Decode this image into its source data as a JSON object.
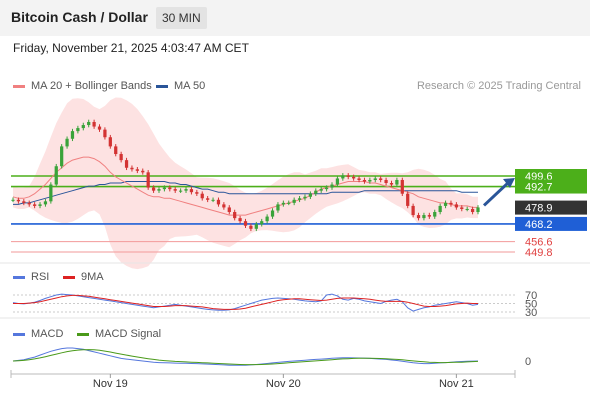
{
  "header": {
    "title": "Bitcoin Cash / Dollar",
    "timeframe": "30 MIN"
  },
  "datetime": "Friday, November 21, 2025 4:03:47 AM CET",
  "legend": {
    "ma20": {
      "label": "MA 20 + Bollinger Bands",
      "color": "#f08080"
    },
    "ma50": {
      "label": "MA 50",
      "color": "#2a5599"
    }
  },
  "credit": "Research © 2025 Trading Central",
  "rsi_legend": {
    "rsi": "RSI",
    "signal": "9MA"
  },
  "macd_legend": {
    "macd": "MACD",
    "signal": "MACD Signal"
  },
  "colors": {
    "up": "#3aa33a",
    "down": "#d33333",
    "resistance": "#4caf1a",
    "support": "#1f5fd6",
    "weak_support": "#e04040",
    "price": "#333333"
  },
  "chart_data": [
    {
      "type": "candlestick",
      "title": "Bitcoin Cash / Dollar",
      "x_ticks": [
        "Nov 19",
        "Nov 20",
        "Nov 21"
      ],
      "ylim": [
        445,
        520
      ],
      "price_labels": [
        {
          "value": 499.6,
          "label": "499.6",
          "kind": "resistance"
        },
        {
          "value": 492.7,
          "label": "492.7",
          "kind": "resistance"
        },
        {
          "value": 478.9,
          "label": "478.9",
          "kind": "last"
        },
        {
          "value": 468.2,
          "label": "468.2",
          "kind": "support"
        },
        {
          "value": 456.6,
          "label": "456.6",
          "kind": "weak_support"
        },
        {
          "value": 449.8,
          "label": "449.8",
          "kind": "weak_support"
        }
      ],
      "close": [
        484,
        483,
        482,
        481,
        480,
        481,
        483,
        494,
        506,
        519,
        524,
        529,
        531,
        533,
        535,
        532,
        530,
        525,
        519,
        514,
        510,
        505,
        504,
        503,
        502,
        492,
        490,
        491,
        492,
        491,
        490,
        490,
        491,
        489,
        488,
        485,
        484,
        484,
        481,
        479,
        476,
        472,
        470,
        467,
        465,
        468,
        470,
        473,
        477,
        481,
        482,
        482,
        484,
        485,
        486,
        488,
        490,
        491,
        492,
        494,
        498,
        500,
        499,
        498,
        497,
        496,
        497,
        498,
        497,
        495,
        494,
        497,
        488,
        480,
        474,
        472,
        474,
        473,
        476,
        480,
        482,
        481,
        479,
        478,
        478,
        476,
        479
      ],
      "ma20": [
        486,
        485,
        485,
        486,
        488,
        491,
        494,
        498,
        502,
        505,
        508,
        510,
        511,
        512,
        512,
        511,
        509,
        506,
        502,
        499,
        497,
        495,
        493,
        491,
        489,
        487,
        486,
        486,
        485,
        485,
        484,
        483,
        482,
        481,
        480,
        479,
        478,
        477,
        476,
        475,
        474,
        474,
        474,
        474,
        475,
        476,
        477,
        478,
        479,
        480,
        481,
        482,
        483,
        484,
        485,
        487,
        489,
        491,
        492,
        493,
        494,
        495,
        496,
        496,
        496,
        496,
        495,
        495,
        494,
        493,
        492,
        491,
        490,
        489,
        488,
        486,
        485,
        484,
        483,
        482,
        482,
        481,
        480,
        480,
        480,
        479,
        479
      ],
      "ma50": [
        481,
        481,
        482,
        482,
        483,
        484,
        485,
        486,
        487,
        488,
        489,
        490,
        491,
        492,
        493,
        493,
        494,
        494,
        495,
        495,
        495,
        496,
        496,
        496,
        496,
        496,
        496,
        496,
        496,
        495,
        495,
        494,
        494,
        493,
        492,
        491,
        491,
        490,
        489,
        489,
        488,
        488,
        488,
        488,
        488,
        488,
        488,
        488,
        488,
        488,
        488,
        488,
        488,
        488,
        488,
        488,
        488,
        488,
        488,
        489,
        489,
        489,
        489,
        489,
        489,
        490,
        490,
        490,
        490,
        490,
        490,
        490,
        490,
        490,
        490,
        490,
        490,
        490,
        490,
        490,
        490,
        490,
        490,
        489,
        489,
        489,
        489
      ]
    },
    {
      "type": "line",
      "title": "RSI",
      "yticks": [
        70,
        50,
        30
      ],
      "ylim": [
        20,
        80
      ],
      "series": [
        {
          "name": "RSI",
          "values": [
            52,
            50,
            49,
            51,
            53,
            57,
            62,
            66,
            70,
            72,
            71,
            70,
            68,
            66,
            64,
            62,
            60,
            58,
            56,
            54,
            52,
            50,
            48,
            46,
            44,
            42,
            40,
            42,
            44,
            46,
            48,
            46,
            44,
            42,
            40,
            38,
            36,
            35,
            34,
            34,
            35,
            38,
            42,
            46,
            50,
            54,
            58,
            60,
            62,
            63,
            62,
            61,
            60,
            58,
            56,
            55,
            54,
            56,
            70,
            72,
            68,
            60,
            58,
            62,
            60,
            56,
            54,
            52,
            50,
            55,
            58,
            60,
            54,
            40,
            32,
            36,
            40,
            42,
            46,
            48,
            50,
            52,
            54,
            52,
            50,
            46,
            48
          ]
        },
        {
          "name": "9MA",
          "values": [
            50,
            50,
            50,
            51,
            52,
            54,
            57,
            60,
            63,
            66,
            68,
            69,
            69,
            68,
            67,
            65,
            63,
            61,
            59,
            57,
            55,
            53,
            51,
            49,
            47,
            45,
            43,
            43,
            43,
            44,
            45,
            45,
            45,
            44,
            43,
            42,
            40,
            38,
            37,
            36,
            36,
            36,
            37,
            39,
            42,
            45,
            48,
            51,
            54,
            57,
            59,
            60,
            61,
            61,
            60,
            59,
            58,
            57,
            58,
            60,
            62,
            63,
            63,
            63,
            62,
            61,
            60,
            58,
            56,
            55,
            55,
            55,
            55,
            53,
            50,
            47,
            44,
            43,
            43,
            44,
            45,
            47,
            49,
            50,
            51,
            50,
            50
          ]
        }
      ]
    },
    {
      "type": "line",
      "title": "MACD",
      "yticks": [
        0
      ],
      "ylim": [
        -5,
        12
      ],
      "series": [
        {
          "name": "MACD",
          "values": [
            0,
            0.5,
            1,
            2,
            3,
            4.5,
            6,
            7.5,
            8.5,
            9.5,
            10,
            10,
            9.5,
            9,
            8,
            7,
            6,
            5,
            4,
            3,
            2,
            1.5,
            1,
            0.5,
            0,
            -0.5,
            -1,
            -1.2,
            -1.4,
            -1.5,
            -1.6,
            -1.7,
            -1.8,
            -1.9,
            -2,
            -2.2,
            -2.4,
            -2.6,
            -2.8,
            -3,
            -3.2,
            -3.3,
            -3.3,
            -3.2,
            -3,
            -2.7,
            -2.3,
            -1.9,
            -1.5,
            -1.1,
            -0.7,
            -0.3,
            0,
            0.3,
            0.6,
            0.9,
            1.2,
            1.5,
            1.8,
            2.1,
            2.3,
            2.5,
            2.5,
            2.4,
            2.3,
            2.2,
            2,
            1.8,
            1.5,
            1.2,
            0.8,
            0.4,
            -0.2,
            -0.8,
            -1.4,
            -1.8,
            -2,
            -2,
            -1.8,
            -1.5,
            -1.2,
            -0.9,
            -0.6,
            -0.4,
            -0.2,
            -0.1,
            0
          ]
        },
        {
          "name": "MACD Signal",
          "values": [
            0,
            0.2,
            0.5,
            1,
            1.6,
            2.4,
            3.3,
            4.3,
            5.3,
            6.3,
            7.2,
            7.9,
            8.4,
            8.7,
            8.8,
            8.6,
            8.2,
            7.6,
            6.9,
            6.1,
            5.3,
            4.5,
            3.8,
            3.1,
            2.4,
            1.8,
            1.2,
            0.7,
            0.3,
            0,
            -0.3,
            -0.5,
            -0.7,
            -0.9,
            -1.1,
            -1.3,
            -1.5,
            -1.7,
            -1.9,
            -2.1,
            -2.3,
            -2.5,
            -2.7,
            -2.8,
            -2.8,
            -2.8,
            -2.7,
            -2.5,
            -2.3,
            -2,
            -1.7,
            -1.4,
            -1.1,
            -0.8,
            -0.5,
            -0.2,
            0.1,
            0.4,
            0.7,
            1,
            1.3,
            1.6,
            1.8,
            2,
            2.1,
            2.1,
            2.1,
            2,
            1.9,
            1.7,
            1.5,
            1.2,
            0.9,
            0.5,
            0.1,
            -0.3,
            -0.6,
            -0.9,
            -1.1,
            -1.2,
            -1.2,
            -1.1,
            -1,
            -0.9,
            -0.7,
            -0.5,
            -0.3
          ]
        }
      ]
    }
  ]
}
